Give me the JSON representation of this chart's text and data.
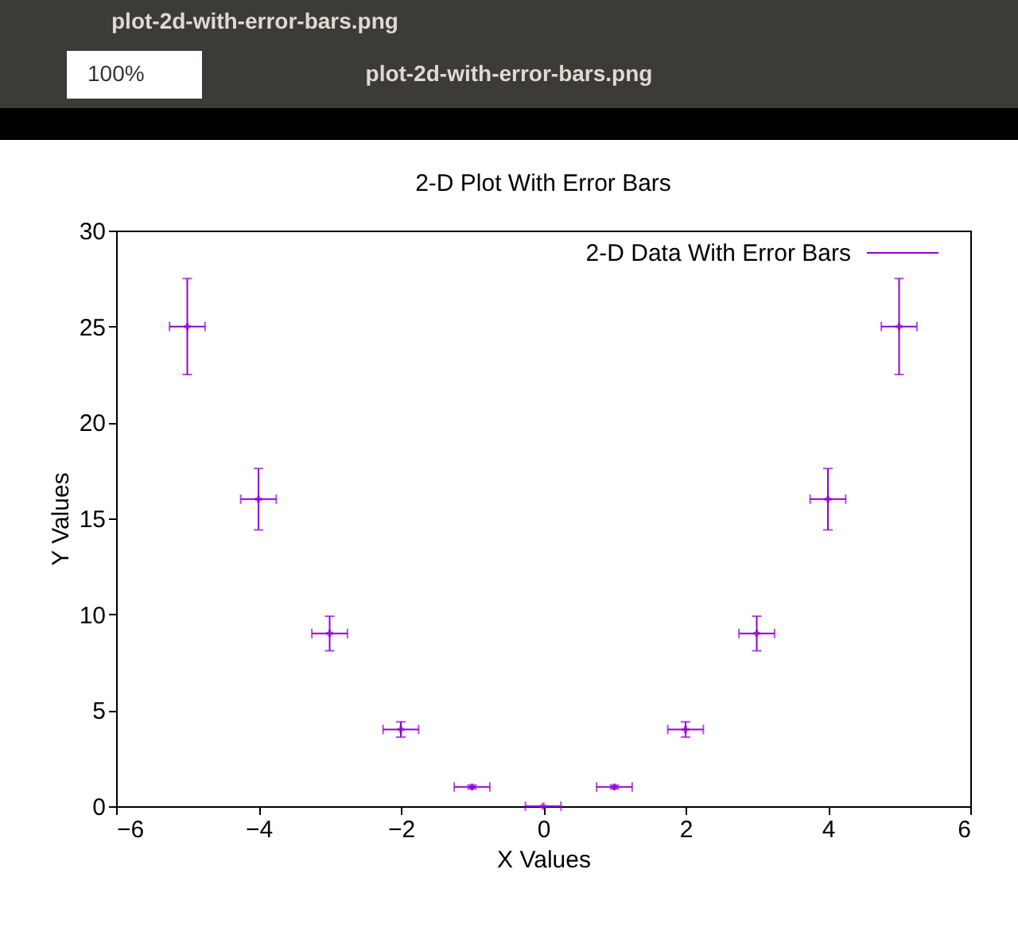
{
  "chart_data": {
    "type": "scatter",
    "title": "2-D Plot With Error Bars",
    "xlabel": "X Values",
    "ylabel": "Y Values",
    "x": [
      -5,
      -4,
      -3,
      -2,
      -1,
      0,
      1,
      2,
      3,
      4,
      5
    ],
    "series": [
      {
        "name": "2-D Data With Error Bars",
        "color": "#9400d3",
        "values": [
          25,
          16,
          9,
          4,
          1,
          0,
          1,
          4,
          9,
          16,
          25
        ],
        "errors": [
          2.5,
          1.6,
          0.9,
          0.4,
          0.1,
          0,
          0.1,
          0.4,
          0.9,
          1.6,
          2.5
        ],
        "xerrors": [
          0.25,
          0.25,
          0.25,
          0.25,
          0.25,
          0.25,
          0.25,
          0.25,
          0.25,
          0.25,
          0.25
        ]
      }
    ],
    "xlim": [
      -6,
      6
    ],
    "xticks": [
      -6,
      -4,
      -2,
      0,
      2,
      4,
      6
    ],
    "ylim": [
      0,
      30
    ],
    "yticks": [
      0,
      5,
      10,
      15,
      20,
      25,
      30
    ],
    "grid": false,
    "legend": "top right",
    "marker": "cross",
    "annotations": [
      "plot-2d-with-error-bars.png",
      "100%",
      "plot-2d-with-error-bars.png"
    ]
  }
}
